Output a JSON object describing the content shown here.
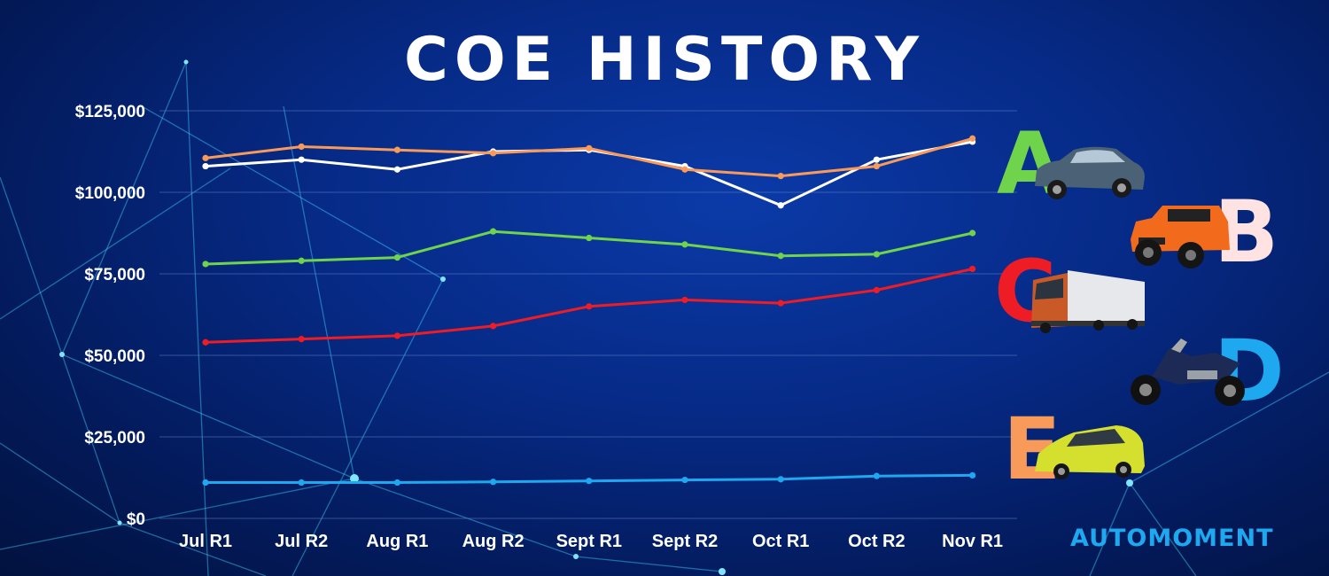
{
  "title": "COE HISTORY",
  "brand": "AUTOMOMENT",
  "chart_data": {
    "type": "line",
    "title": "COE HISTORY",
    "categories": [
      "Jul R1",
      "Jul R2",
      "Aug R1",
      "Aug R2",
      "Sept R1",
      "Sept R2",
      "Oct R1",
      "Oct R2",
      "Nov R1"
    ],
    "y_ticks": [
      "$0",
      "$25,000",
      "$50,000",
      "$75,000",
      "$100,000",
      "$125,000"
    ],
    "ylim": [
      0,
      125000
    ],
    "grid": true,
    "series": [
      {
        "label": "A",
        "color": "#6fd34b",
        "vehicle_icon": "sedan-car-icon",
        "values": [
          78000,
          79000,
          80000,
          88000,
          86000,
          84000,
          80500,
          81000,
          87500
        ]
      },
      {
        "label": "B",
        "color": "#ffe2e2",
        "vehicle_icon": "suv-jeep-icon",
        "values": [
          108000,
          110000,
          107000,
          112500,
          113000,
          108000,
          96000,
          110000,
          115500
        ]
      },
      {
        "label": "C",
        "color": "#ee1c24",
        "vehicle_icon": "truck-icon",
        "values": [
          54000,
          55000,
          56000,
          59000,
          65000,
          67000,
          66000,
          70000,
          76500
        ]
      },
      {
        "label": "D",
        "color": "#1ea8f0",
        "vehicle_icon": "motorcycle-icon",
        "values": [
          11000,
          11000,
          11000,
          11200,
          11500,
          11800,
          12000,
          13000,
          13200
        ]
      },
      {
        "label": "E",
        "color": "#f79a5a",
        "vehicle_icon": "minivan-icon",
        "values": [
          110500,
          114000,
          113000,
          112000,
          113500,
          107000,
          105000,
          108000,
          116500
        ]
      }
    ],
    "line_colors": {
      "B": "#ffffff"
    }
  }
}
